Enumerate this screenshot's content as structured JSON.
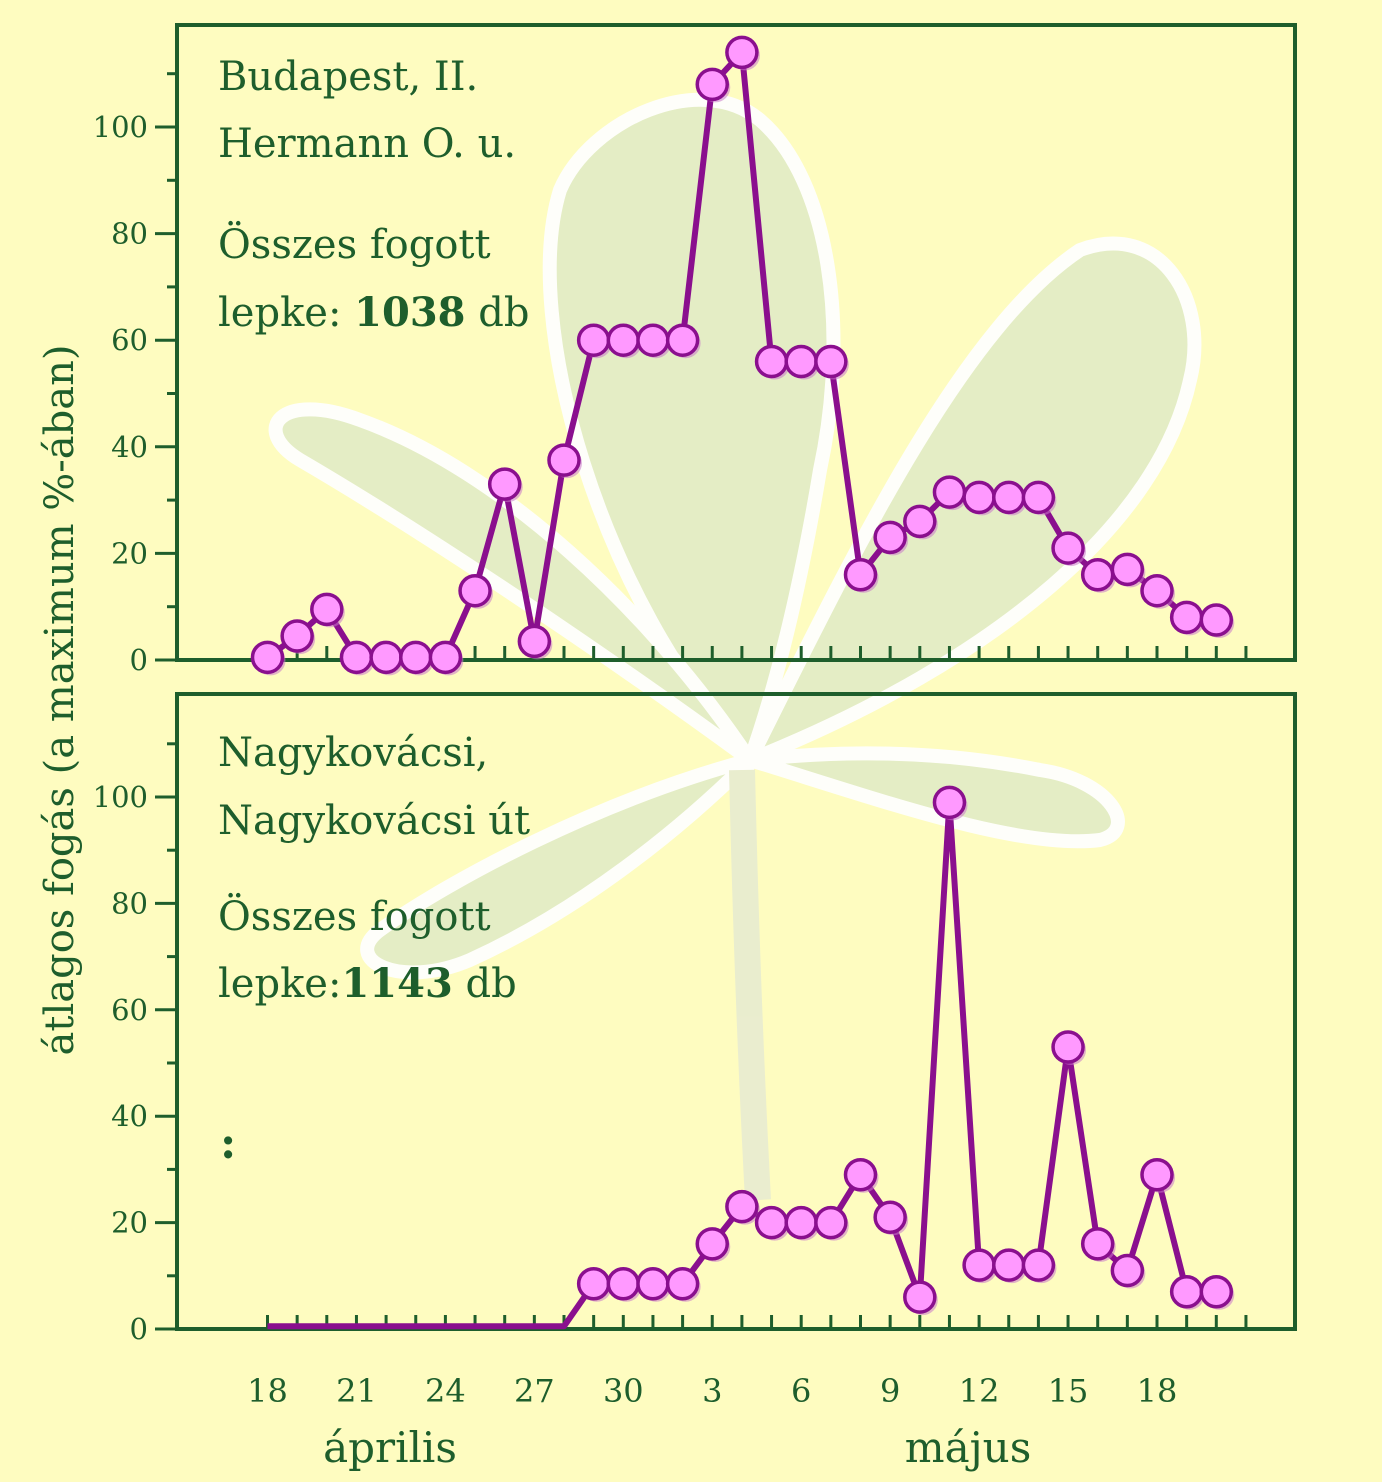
{
  "colors": {
    "background": "#fefcc0",
    "axis": "#1e5e2c",
    "text": "#1e5e2c",
    "line": "#8a0f8e",
    "marker_fill": "#ff99ff",
    "marker_stroke": "#8a0f8e",
    "leaf": "#e2ecc6"
  },
  "chart_data": [
    {
      "type": "line",
      "ylabel": "átlagos fogás (a maximum %-ában)",
      "yticks": [
        "0",
        "20",
        "40",
        "60",
        "80",
        "100"
      ],
      "ylim": [
        0,
        118
      ],
      "xticks": [
        "18",
        "21",
        "24",
        "27",
        "30",
        "3",
        "6",
        "9",
        "12",
        "15",
        "18"
      ],
      "months": [
        "április",
        "május"
      ],
      "annotation": {
        "line1": "Budapest, II.",
        "line2": "Hermann O. u.",
        "line3": "Összes fogott",
        "line4_prefix": "lepke: ",
        "line4_bold": "1038",
        "line4_suffix": "  db"
      },
      "series": [
        {
          "x": [
            "ápr 18",
            "ápr 19",
            "ápr 20",
            "ápr 21",
            "ápr 22",
            "ápr 23",
            "ápr 24",
            "ápr 25",
            "ápr 26",
            "ápr 27",
            "ápr 28",
            "ápr 29",
            "ápr 30",
            "máj 1",
            "máj 2",
            "máj 3",
            "máj 4",
            "máj 5",
            "máj 6",
            "máj 7",
            "máj 8",
            "máj 9",
            "máj 10",
            "máj 11",
            "máj 12",
            "máj 13",
            "máj 14",
            "máj 15",
            "máj 16",
            "máj 17",
            "máj 18",
            "máj 19",
            "máj 20"
          ],
          "values": [
            0.5,
            4.5,
            9.5,
            0.5,
            0.5,
            0.5,
            0.5,
            13,
            33,
            3.5,
            37.5,
            60,
            60,
            60,
            60,
            108,
            114,
            56,
            56,
            56,
            16,
            23,
            26,
            31.5,
            30.5,
            30.5,
            30.5,
            21,
            16,
            17,
            13,
            8,
            7.5
          ],
          "markers": [
            true,
            true,
            true,
            true,
            true,
            true,
            true,
            true,
            true,
            true,
            true,
            true,
            true,
            true,
            true,
            true,
            true,
            true,
            true,
            true,
            true,
            true,
            true,
            true,
            true,
            true,
            true,
            true,
            true,
            true,
            true,
            true,
            true
          ]
        }
      ]
    },
    {
      "type": "line",
      "yticks": [
        "0",
        "20",
        "40",
        "60",
        "80",
        "100"
      ],
      "ylim": [
        0,
        118
      ],
      "annotation": {
        "line1": "Nagykovácsi,",
        "line2": "Nagykovácsi út",
        "line3": "Összes fogott",
        "line4_prefix": "lepke:",
        "line4_bold": "1143",
        "line4_suffix": " db",
        "extra": ":"
      },
      "series": [
        {
          "x": [
            "ápr 18",
            "ápr 19",
            "ápr 20",
            "ápr 21",
            "ápr 22",
            "ápr 23",
            "ápr 24",
            "ápr 25",
            "ápr 26",
            "ápr 27",
            "ápr 28",
            "ápr 29",
            "ápr 30",
            "máj 1",
            "máj 2",
            "máj 3",
            "máj 4",
            "máj 5",
            "máj 6",
            "máj 7",
            "máj 8",
            "máj 9",
            "máj 10",
            "máj 11",
            "máj 12",
            "máj 13",
            "máj 14",
            "máj 15",
            "máj 16",
            "máj 17",
            "máj 18",
            "máj 19",
            "máj 20"
          ],
          "values": [
            0.5,
            0.5,
            0.5,
            0.5,
            0.5,
            0.5,
            0.5,
            0.5,
            0.5,
            0.5,
            0.5,
            8.5,
            8.5,
            8.5,
            8.5,
            16,
            23,
            20,
            20,
            20,
            29,
            21,
            6,
            99,
            12,
            12,
            12,
            53,
            16,
            11,
            29,
            7,
            7
          ],
          "markers": [
            false,
            false,
            false,
            false,
            false,
            false,
            false,
            false,
            false,
            false,
            false,
            true,
            true,
            true,
            true,
            true,
            true,
            true,
            true,
            true,
            true,
            true,
            true,
            true,
            true,
            true,
            true,
            true,
            true,
            true,
            true,
            true,
            true
          ]
        }
      ]
    }
  ]
}
